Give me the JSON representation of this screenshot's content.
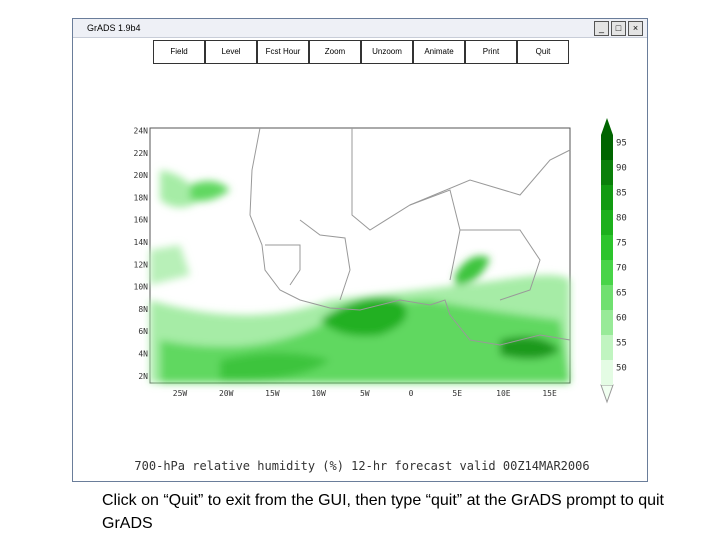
{
  "window": {
    "title": "GrADS 1.9b4",
    "buttons": [
      "Field",
      "Level",
      "Fcst Hour",
      "Zoom",
      "Unzoom",
      "Animate",
      "Print",
      "Quit"
    ]
  },
  "map": {
    "y_labels": [
      "24N",
      "22N",
      "20N",
      "18N",
      "16N",
      "14N",
      "12N",
      "10N",
      "8N",
      "6N",
      "4N",
      "2N"
    ],
    "x_labels": [
      "25W",
      "20W",
      "15W",
      "10W",
      "5W",
      "0",
      "5E",
      "10E",
      "15E"
    ],
    "colorbar_labels": [
      "95",
      "90",
      "85",
      "80",
      "75",
      "70",
      "65",
      "60",
      "55",
      "50"
    ],
    "title": "700-hPa relative humidity (%) 12-hr forecast valid 00Z14MAR2006"
  },
  "caption": "Click on “Quit” to exit from the GUI, then type “quit” at the GrADS prompt to quit GrADS"
}
